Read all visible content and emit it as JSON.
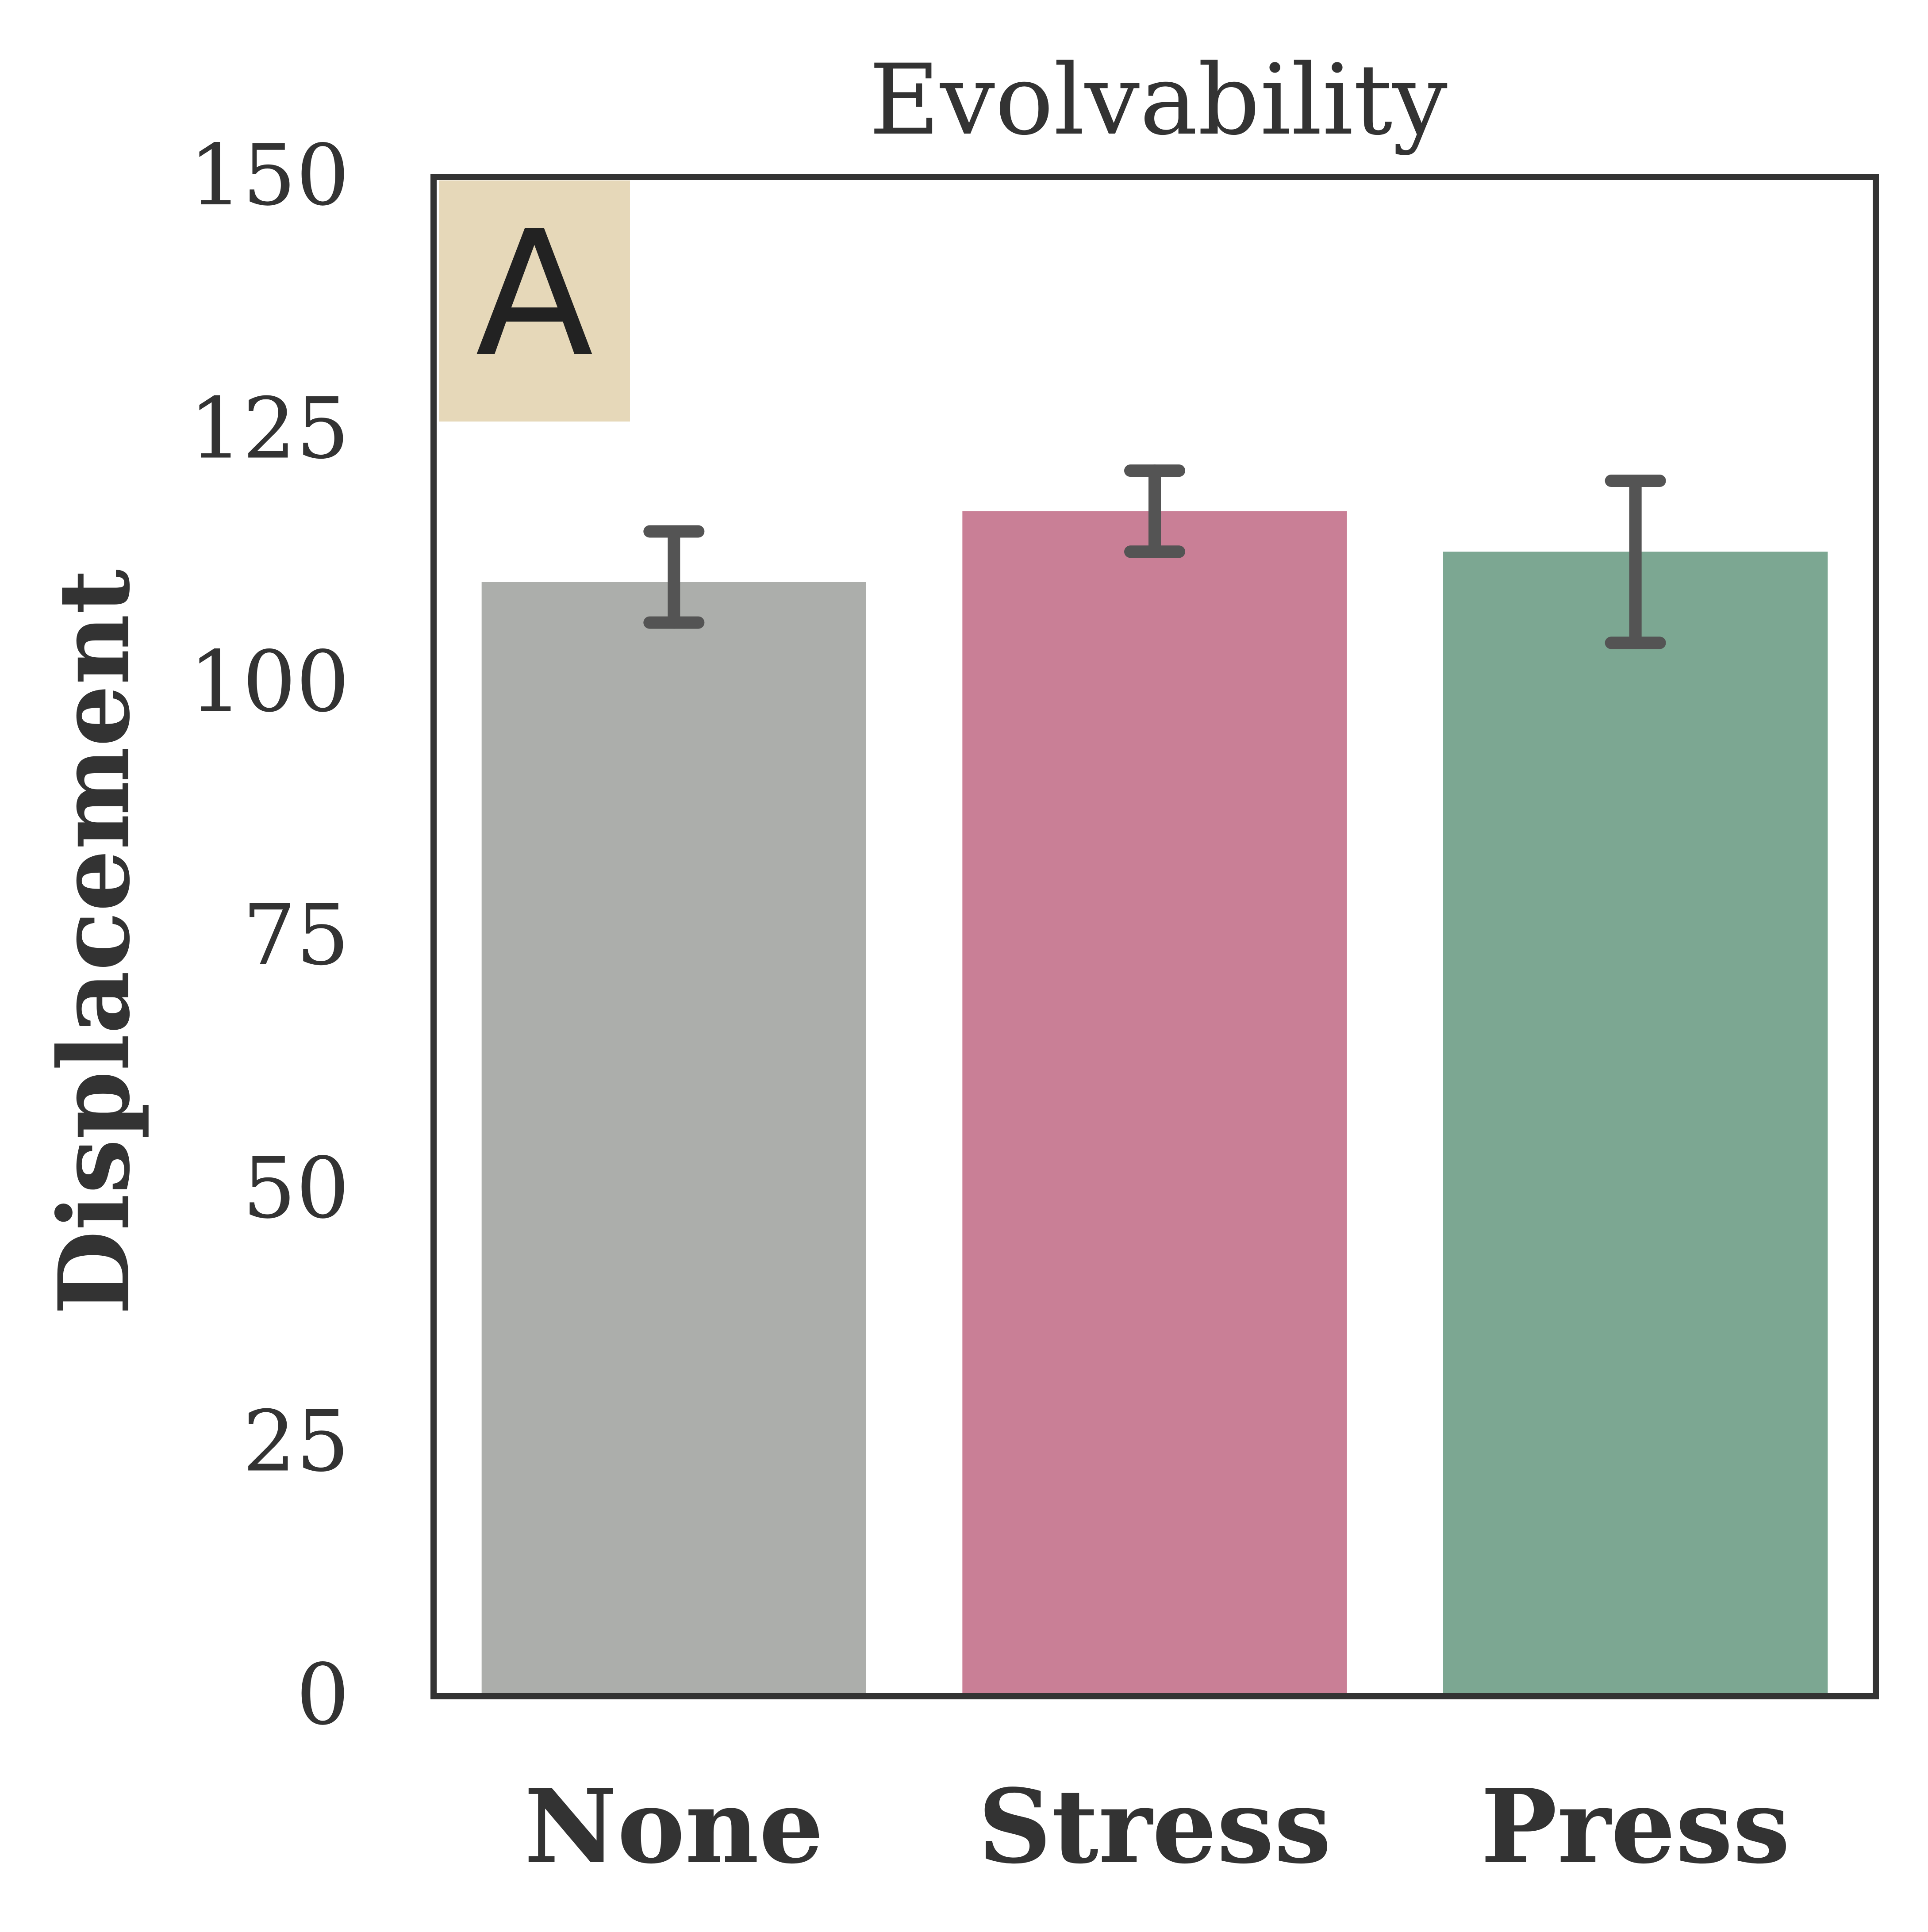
{
  "chart_data": {
    "type": "bar",
    "title": "Evolvability",
    "panel_label": "A",
    "xlabel": "",
    "ylabel": "Displacement",
    "categories": [
      "None",
      "Stress",
      "Press"
    ],
    "values": [
      110,
      117,
      113
    ],
    "error_low": [
      106,
      113,
      104
    ],
    "error_high": [
      115,
      121,
      120
    ],
    "yticks": [
      0,
      25,
      50,
      75,
      100,
      125,
      150
    ],
    "ytick_labels": [
      "0",
      "25",
      "50",
      "75",
      "100",
      "125",
      "150"
    ],
    "ylim": [
      0,
      150
    ],
    "grid": false,
    "legend": "none",
    "colors": {
      "bars": [
        "#acaeab",
        "#c97f96",
        "#7ca792"
      ],
      "error_bars": "#545454",
      "panel_label_bg": "#e6d8b9",
      "text": "#333333",
      "frame": "#333333"
    }
  }
}
